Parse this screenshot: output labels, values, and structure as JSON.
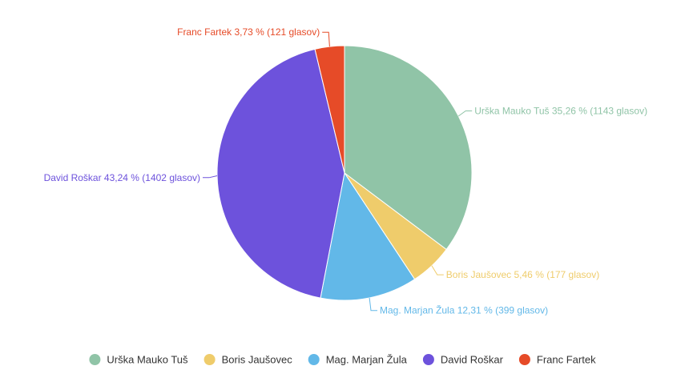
{
  "chart_data": {
    "type": "pie",
    "title": "",
    "unit_label": "glasov",
    "slices": [
      {
        "name": "Urška Mauko Tuš",
        "percent": "35,26",
        "votes": 1143,
        "color": "#90c4a7",
        "label": "Urška Mauko Tuš 35,26 % (1143 glasov)"
      },
      {
        "name": "Boris Jaušovec",
        "percent": "5,46",
        "votes": 177,
        "color": "#efcc6b",
        "label": "Boris Jaušovec 5,46 % (177 glasov)"
      },
      {
        "name": "Mag. Marjan Žula",
        "percent": "12,31",
        "votes": 399,
        "color": "#62b8e8",
        "label": "Mag. Marjan Žula 12,31 % (399 glasov)"
      },
      {
        "name": "David Roškar",
        "percent": "43,24",
        "votes": 1402,
        "color": "#6d52dc",
        "label": "David Roškar 43,24 % (1402 glasov)"
      },
      {
        "name": "Franc Fartek",
        "percent": "3,73",
        "votes": 121,
        "color": "#e64b28",
        "label": "Franc Fartek 3,73 % (121 glasov)"
      }
    ],
    "legend": {
      "position": "bottom",
      "items": [
        "Urška Mauko Tuš",
        "Boris Jaušovec",
        "Mag. Marjan Žula",
        "David Roškar",
        "Franc Fartek"
      ]
    }
  }
}
